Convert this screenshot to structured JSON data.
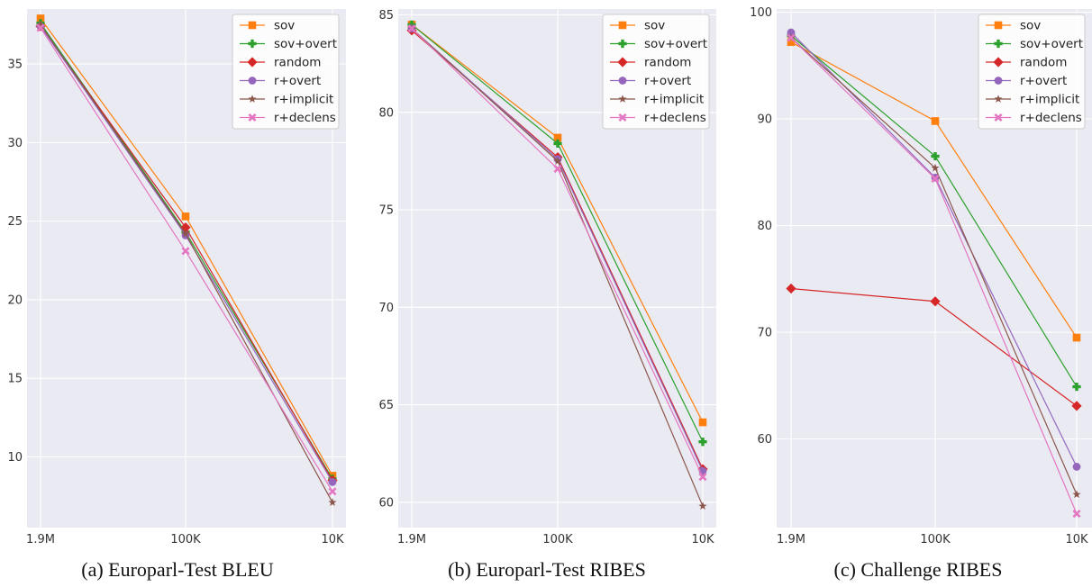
{
  "figure": {
    "series_style": [
      {
        "name": "sov",
        "color": "#ff7f0e",
        "marker": "square"
      },
      {
        "name": "sov+overt",
        "color": "#2ca02c",
        "marker": "plus"
      },
      {
        "name": "random",
        "color": "#d62728",
        "marker": "diamond"
      },
      {
        "name": "r+overt",
        "color": "#9467bd",
        "marker": "circle"
      },
      {
        "name": "r+implicit",
        "color": "#8c564b",
        "marker": "star"
      },
      {
        "name": "r+declens",
        "color": "#e377c2",
        "marker": "x"
      }
    ],
    "background": "#eaeaf2",
    "grid": "#ffffff"
  },
  "chart_data": [
    {
      "type": "line",
      "caption": "(a) Europarl-Test BLEU",
      "title": "",
      "xlabel": "",
      "ylabel": "",
      "categories": [
        "1.9M",
        "100K",
        "10K"
      ],
      "ylim": [
        5.5,
        38.5
      ],
      "yticks": [
        10,
        15,
        20,
        25,
        30,
        35
      ],
      "grid": true,
      "legend_position": "top-right",
      "series": [
        {
          "name": "sov",
          "values": [
            37.9,
            25.3,
            8.8
          ]
        },
        {
          "name": "sov+overt",
          "values": [
            37.6,
            24.3,
            8.6
          ]
        },
        {
          "name": "random",
          "values": [
            37.4,
            24.6,
            8.5
          ]
        },
        {
          "name": "r+overt",
          "values": [
            37.4,
            24.1,
            8.4
          ]
        },
        {
          "name": "r+implicit",
          "values": [
            37.5,
            24.2,
            7.1
          ]
        },
        {
          "name": "r+declens",
          "values": [
            37.3,
            23.1,
            7.8
          ]
        }
      ]
    },
    {
      "type": "line",
      "caption": "(b) Europarl-Test RIBES",
      "title": "",
      "xlabel": "",
      "ylabel": "",
      "categories": [
        "1.9M",
        "100K",
        "10K"
      ],
      "ylim": [
        58.7,
        85.3
      ],
      "yticks": [
        60,
        65,
        70,
        75,
        80,
        85
      ],
      "grid": true,
      "legend_position": "top-right",
      "series": [
        {
          "name": "sov",
          "values": [
            84.5,
            78.7,
            64.1
          ]
        },
        {
          "name": "sov+overt",
          "values": [
            84.5,
            78.4,
            63.1
          ]
        },
        {
          "name": "random",
          "values": [
            84.2,
            77.7,
            61.7
          ]
        },
        {
          "name": "r+overt",
          "values": [
            84.3,
            77.6,
            61.6
          ]
        },
        {
          "name": "r+implicit",
          "values": [
            84.3,
            77.5,
            59.8
          ]
        },
        {
          "name": "r+declens",
          "values": [
            84.3,
            77.1,
            61.3
          ]
        }
      ]
    },
    {
      "type": "line",
      "caption": "(c) Challenge RIBES",
      "title": "",
      "xlabel": "",
      "ylabel": "",
      "categories": [
        "1.9M",
        "100K",
        "10K"
      ],
      "ylim": [
        51.7,
        100.3
      ],
      "yticks": [
        60,
        70,
        80,
        90,
        100
      ],
      "grid": true,
      "legend_position": "top-right",
      "series": [
        {
          "name": "sov",
          "values": [
            97.2,
            89.8,
            69.5
          ]
        },
        {
          "name": "sov+overt",
          "values": [
            97.8,
            86.5,
            64.9
          ]
        },
        {
          "name": "random",
          "values": [
            74.1,
            72.9,
            63.1
          ]
        },
        {
          "name": "r+overt",
          "values": [
            98.1,
            84.5,
            57.4
          ]
        },
        {
          "name": "r+implicit",
          "values": [
            97.6,
            85.4,
            54.8
          ]
        },
        {
          "name": "r+declens",
          "values": [
            97.6,
            84.4,
            53.0
          ]
        }
      ]
    }
  ]
}
